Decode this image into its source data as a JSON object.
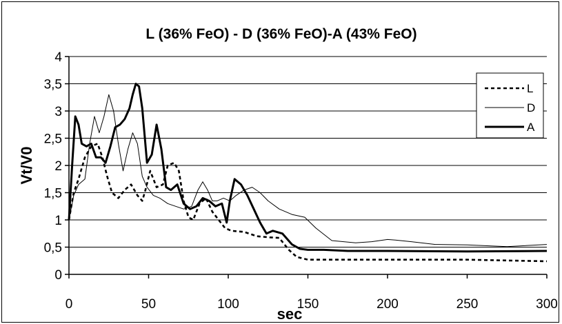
{
  "chart_data": {
    "type": "line",
    "title": "L (36% FeO) - D (36% FeO)-A (43% FeO)",
    "xlabel": "sec",
    "ylabel": "Vt/V0",
    "xlim": [
      0,
      300
    ],
    "ylim": [
      0,
      4
    ],
    "xticks": [
      0,
      50,
      100,
      150,
      200,
      250,
      300
    ],
    "yticks": [
      "0",
      "0,5",
      "1",
      "1,5",
      "2",
      "2,5",
      "3",
      "3,5",
      "4"
    ],
    "grid": "horizontal",
    "legend_position": "top-right",
    "series": [
      {
        "name": "L",
        "style": "dashed",
        "x": [
          0,
          3,
          6,
          10,
          14,
          18,
          21,
          24,
          27,
          31,
          35,
          39,
          43,
          46,
          48,
          51,
          55,
          59,
          62,
          66,
          69,
          72,
          75,
          78,
          82,
          86,
          90,
          94,
          98,
          102,
          110,
          118,
          126,
          132,
          138,
          143,
          150,
          175,
          200,
          250,
          300
        ],
        "y": [
          1.0,
          1.5,
          1.75,
          2.15,
          2.35,
          2.4,
          2.15,
          1.8,
          1.5,
          1.4,
          1.55,
          1.65,
          1.45,
          1.35,
          1.55,
          1.9,
          1.6,
          1.65,
          2.0,
          2.05,
          1.9,
          1.35,
          1.05,
          1.0,
          1.3,
          1.4,
          1.15,
          1.0,
          0.85,
          0.8,
          0.78,
          0.7,
          0.68,
          0.67,
          0.45,
          0.32,
          0.27,
          0.27,
          0.27,
          0.27,
          0.24
        ]
      },
      {
        "name": "D",
        "style": "thin",
        "x": [
          0,
          3,
          6,
          10,
          13,
          16,
          19,
          22,
          25,
          28,
          31,
          34,
          37,
          40,
          43,
          46,
          49,
          53,
          57,
          62,
          67,
          72,
          77,
          81,
          84,
          87,
          90,
          93,
          97,
          101,
          105,
          110,
          115,
          120,
          125,
          132,
          140,
          148,
          155,
          165,
          180,
          190,
          200,
          205,
          215,
          230,
          250,
          275,
          300
        ],
        "y": [
          1.0,
          1.45,
          1.65,
          1.75,
          2.4,
          2.9,
          2.6,
          2.9,
          3.3,
          3.0,
          2.4,
          1.9,
          2.3,
          2.6,
          2.4,
          1.8,
          1.6,
          1.45,
          1.4,
          1.3,
          1.25,
          1.2,
          1.25,
          1.55,
          1.7,
          1.55,
          1.35,
          1.35,
          1.4,
          1.35,
          1.45,
          1.55,
          1.6,
          1.5,
          1.35,
          1.2,
          1.1,
          1.05,
          0.85,
          0.62,
          0.58,
          0.6,
          0.64,
          0.63,
          0.6,
          0.55,
          0.54,
          0.51,
          0.55
        ]
      },
      {
        "name": "A",
        "style": "thick",
        "x": [
          0,
          2,
          4,
          6,
          8,
          11,
          14,
          17,
          20,
          23,
          26,
          29,
          32,
          35,
          38,
          40,
          42,
          44,
          46,
          49,
          52,
          55,
          58,
          61,
          64,
          68,
          72,
          76,
          80,
          84,
          88,
          92,
          96,
          99,
          101,
          104,
          108,
          112,
          116,
          120,
          124,
          128,
          134,
          140,
          145,
          150,
          160,
          175,
          200,
          250,
          300
        ],
        "y": [
          1.0,
          2.0,
          2.9,
          2.75,
          2.4,
          2.35,
          2.4,
          2.15,
          2.15,
          2.05,
          2.35,
          2.7,
          2.75,
          2.85,
          3.05,
          3.3,
          3.5,
          3.45,
          3.05,
          2.05,
          2.2,
          2.75,
          2.3,
          1.6,
          1.55,
          1.65,
          1.3,
          1.2,
          1.25,
          1.4,
          1.35,
          1.25,
          1.3,
          0.95,
          1.35,
          1.75,
          1.65,
          1.45,
          1.2,
          0.95,
          0.75,
          0.8,
          0.75,
          0.55,
          0.47,
          0.45,
          0.45,
          0.43,
          0.43,
          0.42,
          0.43
        ]
      }
    ]
  }
}
